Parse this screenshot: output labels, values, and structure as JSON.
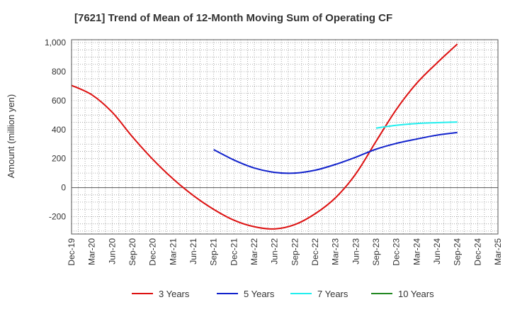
{
  "chart_data": {
    "type": "line",
    "title": "[7621]  Trend of Mean of 12-Month Moving Sum of Operating CF",
    "xlabel": "",
    "ylabel": "Amount (million yen)",
    "ylim": [
      -320,
      1020
    ],
    "yticks": [
      -200,
      0,
      200,
      400,
      600,
      800,
      1000
    ],
    "ytick_labels": [
      "-200",
      "0",
      "200",
      "400",
      "600",
      "800",
      "1,000"
    ],
    "xtick_labels": [
      "Dec-19",
      "Mar-20",
      "Jun-20",
      "Sep-20",
      "Dec-20",
      "Mar-21",
      "Jun-21",
      "Sep-21",
      "Dec-21",
      "Mar-22",
      "Jun-22",
      "Sep-22",
      "Dec-22",
      "Mar-23",
      "Jun-23",
      "Sep-23",
      "Dec-23",
      "Mar-24",
      "Jun-24",
      "Sep-24",
      "Dec-24",
      "Mar-25"
    ],
    "x_months_per_tick": 3,
    "x_start": "Dec-19",
    "x_end": "Mar-25",
    "x_end_index": 63,
    "series": [
      {
        "name": "3 Years",
        "color": "#dd1111",
        "x": [
          0,
          3,
          6,
          9,
          12,
          15,
          18,
          21,
          24,
          27,
          30,
          33,
          36,
          39,
          42,
          45,
          48,
          51,
          54,
          57
        ],
        "values": [
          705,
          640,
          520,
          350,
          195,
          60,
          -55,
          -150,
          -225,
          -270,
          -285,
          -255,
          -180,
          -70,
          95,
          320,
          540,
          720,
          860,
          990
        ]
      },
      {
        "name": "5 Years",
        "color": "#1122cc",
        "x": [
          21,
          24,
          27,
          30,
          33,
          36,
          39,
          42,
          45,
          48,
          51,
          54,
          57
        ],
        "values": [
          262,
          190,
          135,
          105,
          100,
          120,
          160,
          210,
          265,
          305,
          335,
          362,
          380
        ]
      },
      {
        "name": "7 Years",
        "color": "#22eeee",
        "x": [
          45,
          48,
          51,
          54,
          57
        ],
        "values": [
          410,
          430,
          442,
          448,
          452
        ]
      },
      {
        "name": "10 Years",
        "color": "#228822",
        "x": [],
        "values": []
      }
    ],
    "legend_position": "bottom",
    "grid": true
  }
}
